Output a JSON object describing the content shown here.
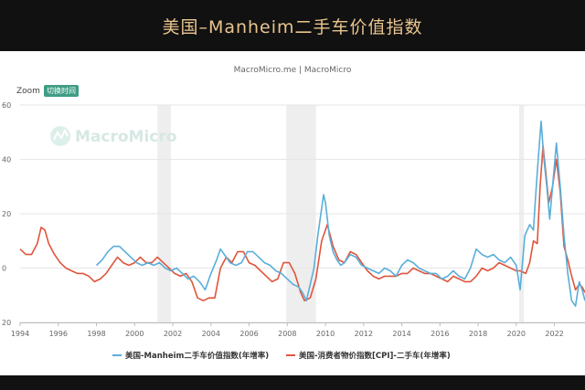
{
  "banner": {
    "title": "美国–Manheim二手车价值指数"
  },
  "chart": {
    "source_line": "MacroMicro.me | MacroMicro",
    "zoom_label": "Zoom",
    "zoom_button": "切换时间",
    "watermark": "MacroMicro",
    "watermark_icon": "macromicro-logo-icon"
  },
  "colors": {
    "series_manheim": "#5AAEDA",
    "series_cpi": "#E0553C",
    "recession_band": "#EEEEEE",
    "grid": "#E6E6E6",
    "zoom_button": "#3F9C85",
    "banner_title": "#E9C58E",
    "background": "#111111"
  },
  "chart_data": {
    "type": "line",
    "title": "美国–Manheim二手车价值指数",
    "xlabel": "",
    "ylabel": "",
    "xlim": [
      1994,
      2023.6
    ],
    "ylim": [
      -20,
      60
    ],
    "x_ticks": [
      1994,
      1996,
      1998,
      2000,
      2002,
      2004,
      2006,
      2008,
      2010,
      2012,
      2014,
      2016,
      2018,
      2020,
      2022
    ],
    "y_ticks": [
      -20,
      0,
      20,
      40,
      60
    ],
    "grid": "horizontal",
    "legend_position": "bottom",
    "recession_bands": [
      [
        2001.2,
        2001.9
      ],
      [
        2007.95,
        2009.5
      ],
      [
        2020.15,
        2020.4
      ]
    ],
    "series": [
      {
        "name": "美国-Manheim二手车价值指数(年增率)",
        "color": "#5AAEDA",
        "points": [
          [
            1998.0,
            1
          ],
          [
            1998.3,
            3
          ],
          [
            1998.6,
            6
          ],
          [
            1998.9,
            8
          ],
          [
            1999.2,
            8
          ],
          [
            1999.5,
            6
          ],
          [
            1999.8,
            4
          ],
          [
            2000.1,
            2
          ],
          [
            2000.4,
            1
          ],
          [
            2000.7,
            2
          ],
          [
            2001.0,
            1
          ],
          [
            2001.3,
            2
          ],
          [
            2001.6,
            0
          ],
          [
            2001.9,
            -1
          ],
          [
            2002.2,
            0
          ],
          [
            2002.5,
            -2
          ],
          [
            2002.8,
            -4
          ],
          [
            2003.1,
            -3
          ],
          [
            2003.4,
            -5
          ],
          [
            2003.7,
            -8
          ],
          [
            2004.0,
            -2
          ],
          [
            2004.3,
            3
          ],
          [
            2004.5,
            7
          ],
          [
            2004.7,
            5
          ],
          [
            2005.0,
            2
          ],
          [
            2005.3,
            1
          ],
          [
            2005.6,
            2
          ],
          [
            2005.9,
            6
          ],
          [
            2006.2,
            6
          ],
          [
            2006.5,
            4
          ],
          [
            2006.8,
            2
          ],
          [
            2007.1,
            1
          ],
          [
            2007.4,
            -1
          ],
          [
            2007.7,
            -2
          ],
          [
            2008.0,
            -4
          ],
          [
            2008.3,
            -6
          ],
          [
            2008.6,
            -7
          ],
          [
            2008.8,
            -9
          ],
          [
            2009.0,
            -12
          ],
          [
            2009.2,
            -6
          ],
          [
            2009.4,
            0
          ],
          [
            2009.6,
            12
          ],
          [
            2009.8,
            22
          ],
          [
            2009.9,
            27
          ],
          [
            2010.0,
            24
          ],
          [
            2010.2,
            12
          ],
          [
            2010.4,
            6
          ],
          [
            2010.6,
            3
          ],
          [
            2010.8,
            1
          ],
          [
            2011.0,
            2
          ],
          [
            2011.3,
            5
          ],
          [
            2011.6,
            4
          ],
          [
            2011.9,
            1
          ],
          [
            2012.2,
            0
          ],
          [
            2012.5,
            -1
          ],
          [
            2012.8,
            -2
          ],
          [
            2013.1,
            0
          ],
          [
            2013.4,
            -1
          ],
          [
            2013.7,
            -3
          ],
          [
            2014.0,
            1
          ],
          [
            2014.3,
            3
          ],
          [
            2014.6,
            2
          ],
          [
            2014.9,
            0
          ],
          [
            2015.2,
            -1
          ],
          [
            2015.5,
            -2
          ],
          [
            2015.8,
            -2
          ],
          [
            2016.1,
            -4
          ],
          [
            2016.4,
            -3
          ],
          [
            2016.7,
            -1
          ],
          [
            2017.0,
            -3
          ],
          [
            2017.3,
            -4
          ],
          [
            2017.6,
            0
          ],
          [
            2017.9,
            7
          ],
          [
            2018.2,
            5
          ],
          [
            2018.5,
            4
          ],
          [
            2018.8,
            5
          ],
          [
            2019.1,
            3
          ],
          [
            2019.4,
            2
          ],
          [
            2019.7,
            4
          ],
          [
            2020.0,
            1
          ],
          [
            2020.2,
            -8
          ],
          [
            2020.45,
            12
          ],
          [
            2020.7,
            16
          ],
          [
            2020.9,
            14
          ],
          [
            2021.0,
            25
          ],
          [
            2021.15,
            40
          ],
          [
            2021.3,
            54
          ],
          [
            2021.45,
            40
          ],
          [
            2021.6,
            30
          ],
          [
            2021.75,
            18
          ],
          [
            2021.9,
            30
          ],
          [
            2022.1,
            46
          ],
          [
            2022.3,
            30
          ],
          [
            2022.5,
            12
          ],
          [
            2022.7,
            -2
          ],
          [
            2022.9,
            -12
          ],
          [
            2023.1,
            -14
          ],
          [
            2023.3,
            -5
          ],
          [
            2023.45,
            -8
          ],
          [
            2023.6,
            -12
          ]
        ]
      },
      {
        "name": "美国-消费者物价指数[CPI]-二手车(年增率)",
        "color": "#E0553C",
        "points": [
          [
            1994.0,
            7
          ],
          [
            1994.3,
            5
          ],
          [
            1994.6,
            5
          ],
          [
            1994.9,
            9
          ],
          [
            1995.1,
            15
          ],
          [
            1995.3,
            14
          ],
          [
            1995.5,
            9
          ],
          [
            1995.8,
            5
          ],
          [
            1996.1,
            2
          ],
          [
            1996.4,
            0
          ],
          [
            1996.7,
            -1
          ],
          [
            1997.0,
            -2
          ],
          [
            1997.3,
            -2
          ],
          [
            1997.6,
            -3
          ],
          [
            1997.9,
            -5
          ],
          [
            1998.2,
            -4
          ],
          [
            1998.5,
            -2
          ],
          [
            1998.8,
            1
          ],
          [
            1999.1,
            4
          ],
          [
            1999.4,
            2
          ],
          [
            1999.7,
            1
          ],
          [
            2000.0,
            2
          ],
          [
            2000.3,
            4
          ],
          [
            2000.6,
            2
          ],
          [
            2000.9,
            2
          ],
          [
            2001.2,
            4
          ],
          [
            2001.5,
            2
          ],
          [
            2001.8,
            0
          ],
          [
            2002.1,
            -2
          ],
          [
            2002.4,
            -3
          ],
          [
            2002.7,
            -2
          ],
          [
            2003.0,
            -5
          ],
          [
            2003.3,
            -11
          ],
          [
            2003.6,
            -12
          ],
          [
            2003.9,
            -11
          ],
          [
            2004.2,
            -11
          ],
          [
            2004.5,
            0
          ],
          [
            2004.8,
            4
          ],
          [
            2005.1,
            2
          ],
          [
            2005.4,
            6
          ],
          [
            2005.7,
            6
          ],
          [
            2006.0,
            2
          ],
          [
            2006.3,
            1
          ],
          [
            2006.6,
            -1
          ],
          [
            2006.9,
            -3
          ],
          [
            2007.2,
            -5
          ],
          [
            2007.5,
            -4
          ],
          [
            2007.8,
            2
          ],
          [
            2008.1,
            2
          ],
          [
            2008.4,
            -2
          ],
          [
            2008.7,
            -9
          ],
          [
            2008.9,
            -12
          ],
          [
            2009.2,
            -11
          ],
          [
            2009.5,
            -4
          ],
          [
            2009.8,
            10
          ],
          [
            2010.1,
            16
          ],
          [
            2010.4,
            8
          ],
          [
            2010.7,
            3
          ],
          [
            2011.0,
            2
          ],
          [
            2011.3,
            6
          ],
          [
            2011.6,
            5
          ],
          [
            2011.9,
            2
          ],
          [
            2012.2,
            -1
          ],
          [
            2012.5,
            -3
          ],
          [
            2012.8,
            -4
          ],
          [
            2013.1,
            -3
          ],
          [
            2013.4,
            -3
          ],
          [
            2013.7,
            -3
          ],
          [
            2014.0,
            -2
          ],
          [
            2014.3,
            -2
          ],
          [
            2014.6,
            0
          ],
          [
            2014.9,
            -1
          ],
          [
            2015.2,
            -2
          ],
          [
            2015.5,
            -2
          ],
          [
            2015.8,
            -3
          ],
          [
            2016.1,
            -4
          ],
          [
            2016.4,
            -5
          ],
          [
            2016.7,
            -3
          ],
          [
            2017.0,
            -4
          ],
          [
            2017.3,
            -5
          ],
          [
            2017.6,
            -5
          ],
          [
            2017.9,
            -3
          ],
          [
            2018.2,
            0
          ],
          [
            2018.5,
            -1
          ],
          [
            2018.8,
            0
          ],
          [
            2019.1,
            2
          ],
          [
            2019.4,
            1
          ],
          [
            2019.7,
            0
          ],
          [
            2020.0,
            -1
          ],
          [
            2020.2,
            -1
          ],
          [
            2020.5,
            -2
          ],
          [
            2020.7,
            2
          ],
          [
            2020.9,
            10
          ],
          [
            2021.1,
            9
          ],
          [
            2021.25,
            30
          ],
          [
            2021.4,
            45
          ],
          [
            2021.55,
            35
          ],
          [
            2021.7,
            24
          ],
          [
            2021.9,
            30
          ],
          [
            2022.1,
            40
          ],
          [
            2022.3,
            28
          ],
          [
            2022.5,
            8
          ],
          [
            2022.7,
            3
          ],
          [
            2022.9,
            -3
          ],
          [
            2023.1,
            -8
          ],
          [
            2023.3,
            -6
          ],
          [
            2023.45,
            -7
          ],
          [
            2023.6,
            -9
          ]
        ]
      }
    ]
  }
}
